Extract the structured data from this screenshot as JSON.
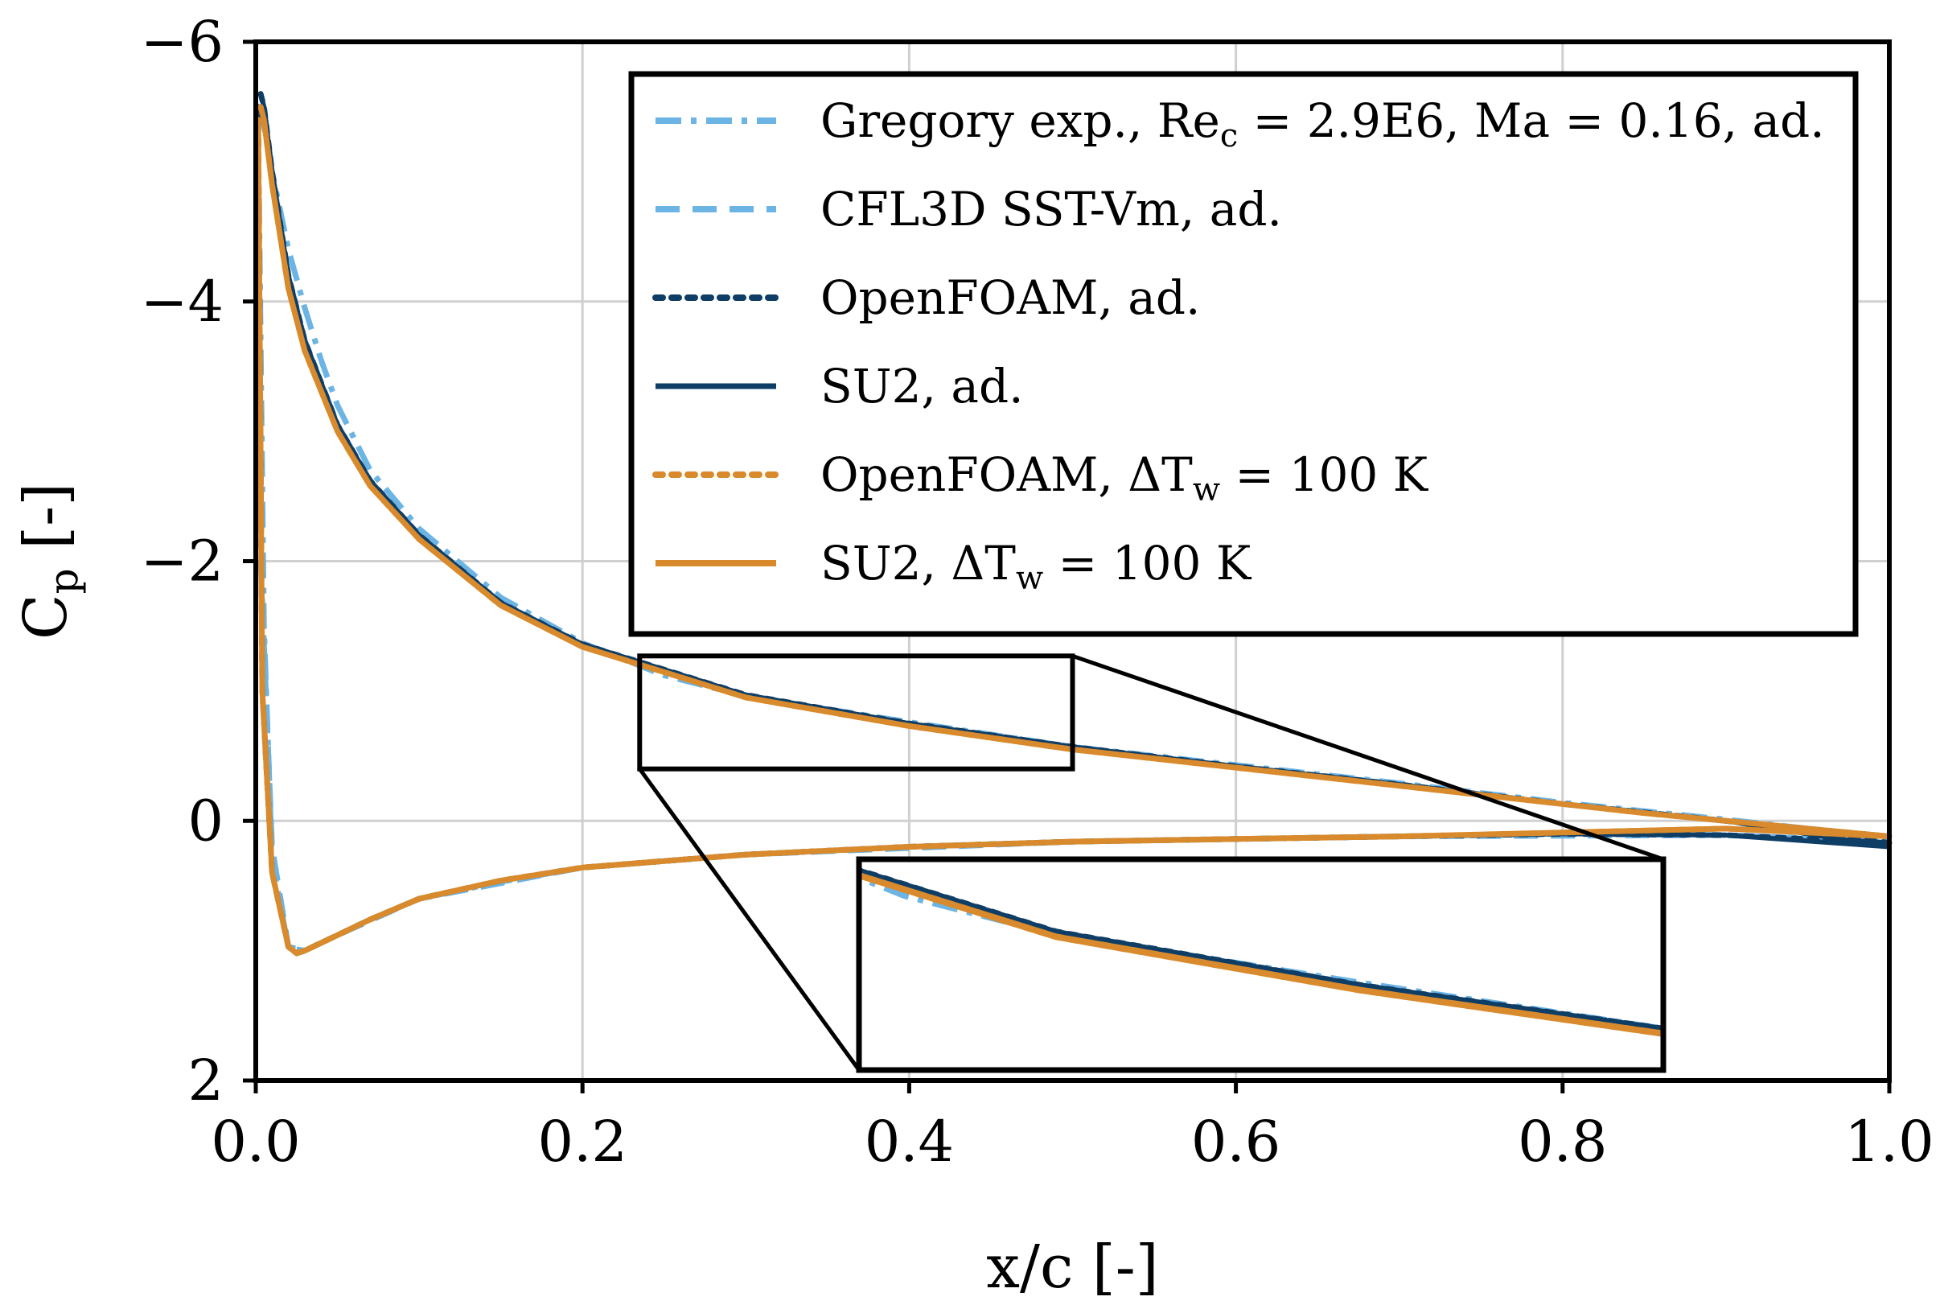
{
  "chart_data": {
    "type": "line",
    "xlabel": "x/c [-]",
    "ylabel_main": "C",
    "ylabel_sub": "p",
    "ylabel_unit": " [-]",
    "xlim": [
      0.0,
      1.0
    ],
    "ylim": [
      2,
      -6
    ],
    "y_inverted": true,
    "grid": true,
    "legend_placement": "top-right",
    "x_ticks": [
      {
        "v": 0.0,
        "label": "0.0"
      },
      {
        "v": 0.2,
        "label": "0.2"
      },
      {
        "v": 0.4,
        "label": "0.4"
      },
      {
        "v": 0.6,
        "label": "0.6"
      },
      {
        "v": 0.8,
        "label": "0.8"
      },
      {
        "v": 1.0,
        "label": "1.0"
      }
    ],
    "y_ticks": [
      {
        "v": -6,
        "label": "−6"
      },
      {
        "v": -4,
        "label": "−4"
      },
      {
        "v": -2,
        "label": "−2"
      },
      {
        "v": 0,
        "label": "0"
      },
      {
        "v": 2,
        "label": "2"
      }
    ],
    "series": [
      {
        "name": "Gregory exp., Re_c = 2.9E6, Ma = 0.16, ad.",
        "legend_parts": [
          [
            "Gregory exp., Re",
            ""
          ],
          [
            "c",
            "sub"
          ],
          [
            " = 2.9E6, Ma = 0.16, ad.",
            ""
          ]
        ],
        "color": "#6cb4e4",
        "style": "dashdot",
        "width": 7,
        "upper": {
          "x": [
            0.003,
            0.01,
            0.02,
            0.03,
            0.04,
            0.05,
            0.07,
            0.1,
            0.15,
            0.2,
            0.25,
            0.3,
            0.4,
            0.5,
            0.6,
            0.7,
            0.8,
            0.9,
            1.0
          ],
          "y": [
            -5.5,
            -5.0,
            -4.4,
            -3.95,
            -3.55,
            -3.2,
            -2.7,
            -2.25,
            -1.72,
            -1.37,
            -1.12,
            -0.96,
            -0.76,
            -0.57,
            -0.43,
            -0.29,
            -0.14,
            -0.01,
            0.13
          ]
        },
        "lower": {
          "x": [
            0.002,
            0.005,
            0.01,
            0.02,
            0.03,
            0.05,
            0.07,
            0.1,
            0.15,
            0.2,
            0.3,
            0.4,
            0.5,
            0.6,
            0.7,
            0.8,
            0.9,
            1.0
          ],
          "y": [
            -4.8,
            -1.5,
            0.3,
            0.98,
            1.0,
            0.88,
            0.76,
            0.6,
            0.47,
            0.36,
            0.26,
            0.2,
            0.16,
            0.14,
            0.12,
            0.1,
            0.11,
            0.16
          ]
        }
      },
      {
        "name": "CFL3D SST-Vm, ad.",
        "legend_parts": [
          [
            "CFL3D SST-Vm, ad.",
            ""
          ]
        ],
        "color": "#6cb4e4",
        "style": "dashed",
        "width": 7,
        "upper": {
          "x": [
            0.005,
            0.01,
            0.02,
            0.03,
            0.05,
            0.07,
            0.1,
            0.15,
            0.2,
            0.3,
            0.4,
            0.5,
            0.6,
            0.7,
            0.8,
            0.9,
            1.0
          ],
          "y": [
            -5.5,
            -5.0,
            -4.2,
            -3.7,
            -3.05,
            -2.62,
            -2.2,
            -1.68,
            -1.36,
            -0.96,
            -0.74,
            -0.56,
            -0.42,
            -0.28,
            -0.13,
            0.0,
            0.12
          ]
        },
        "lower": {
          "x": [
            0.003,
            0.01,
            0.02,
            0.03,
            0.05,
            0.1,
            0.2,
            0.3,
            0.5,
            0.7,
            0.9,
            1.0
          ],
          "y": [
            -2.0,
            0.2,
            0.97,
            1.0,
            0.88,
            0.6,
            0.36,
            0.26,
            0.16,
            0.12,
            0.11,
            0.16
          ]
        }
      },
      {
        "name": "OpenFOAM, ad.",
        "legend_parts": [
          [
            "OpenFOAM, ad.",
            ""
          ]
        ],
        "color": "#0e3d66",
        "style": "dotted",
        "width": 7,
        "upper": {
          "x": [
            0.003,
            0.005,
            0.01,
            0.02,
            0.03,
            0.05,
            0.07,
            0.1,
            0.15,
            0.2,
            0.3,
            0.4,
            0.5,
            0.6,
            0.7,
            0.8,
            0.9,
            1.0
          ],
          "y": [
            -5.6,
            -5.5,
            -5.0,
            -4.2,
            -3.7,
            -3.05,
            -2.62,
            -2.2,
            -1.68,
            -1.36,
            -0.97,
            -0.75,
            -0.57,
            -0.42,
            -0.28,
            -0.13,
            0.0,
            0.17
          ]
        },
        "lower": {
          "x": [
            0.0015,
            0.004,
            0.01,
            0.02,
            0.025,
            0.03,
            0.05,
            0.07,
            0.1,
            0.15,
            0.2,
            0.3,
            0.4,
            0.5,
            0.6,
            0.7,
            0.8,
            0.9,
            1.0
          ],
          "y": [
            -5.5,
            -1.0,
            0.4,
            0.97,
            1.02,
            1.0,
            0.88,
            0.76,
            0.6,
            0.46,
            0.36,
            0.26,
            0.2,
            0.16,
            0.14,
            0.12,
            0.1,
            0.11,
            0.17
          ]
        }
      },
      {
        "name": "SU2, ad.",
        "legend_parts": [
          [
            "SU2, ad.",
            ""
          ]
        ],
        "color": "#0e3d66",
        "style": "solid",
        "width": 6,
        "upper": {
          "x": [
            0.003,
            0.005,
            0.01,
            0.02,
            0.03,
            0.05,
            0.07,
            0.1,
            0.15,
            0.2,
            0.3,
            0.4,
            0.5,
            0.6,
            0.7,
            0.8,
            0.9,
            1.0
          ],
          "y": [
            -5.6,
            -5.5,
            -5.0,
            -4.2,
            -3.7,
            -3.05,
            -2.62,
            -2.2,
            -1.68,
            -1.36,
            -0.97,
            -0.75,
            -0.57,
            -0.42,
            -0.28,
            -0.13,
            0.0,
            0.2
          ]
        },
        "lower": {
          "x": [
            0.0015,
            0.004,
            0.01,
            0.02,
            0.025,
            0.03,
            0.05,
            0.07,
            0.1,
            0.15,
            0.2,
            0.3,
            0.4,
            0.5,
            0.6,
            0.7,
            0.8,
            0.9,
            1.0
          ],
          "y": [
            -5.5,
            -1.0,
            0.4,
            0.97,
            1.02,
            1.0,
            0.88,
            0.76,
            0.6,
            0.46,
            0.36,
            0.26,
            0.2,
            0.16,
            0.14,
            0.12,
            0.1,
            0.11,
            0.2
          ]
        }
      },
      {
        "name": "OpenFOAM, ΔT_w = 100 K",
        "legend_parts": [
          [
            "OpenFOAM, ΔT",
            ""
          ],
          [
            "w",
            "sub"
          ],
          [
            " = 100 K",
            ""
          ]
        ],
        "color": "#d88a2c",
        "style": "dotted",
        "width": 7,
        "upper": {
          "x": [
            0.003,
            0.005,
            0.01,
            0.02,
            0.03,
            0.05,
            0.07,
            0.1,
            0.15,
            0.2,
            0.3,
            0.4,
            0.5,
            0.6,
            0.7,
            0.8,
            0.85,
            0.9,
            1.0
          ],
          "y": [
            -5.5,
            -5.4,
            -4.9,
            -4.1,
            -3.62,
            -3.0,
            -2.58,
            -2.17,
            -1.66,
            -1.34,
            -0.95,
            -0.73,
            -0.55,
            -0.41,
            -0.27,
            -0.13,
            -0.06,
            0.0,
            0.12
          ]
        },
        "lower": {
          "x": [
            0.0015,
            0.004,
            0.01,
            0.02,
            0.025,
            0.03,
            0.05,
            0.07,
            0.1,
            0.15,
            0.2,
            0.3,
            0.4,
            0.5,
            0.6,
            0.7,
            0.8,
            0.9,
            1.0
          ],
          "y": [
            -5.4,
            -1.0,
            0.4,
            0.97,
            1.02,
            1.0,
            0.88,
            0.76,
            0.6,
            0.46,
            0.36,
            0.26,
            0.2,
            0.16,
            0.14,
            0.12,
            0.09,
            0.06,
            0.12
          ]
        }
      },
      {
        "name": "SU2, ΔT_w = 100 K",
        "legend_parts": [
          [
            "SU2, ΔT",
            ""
          ],
          [
            "w",
            "sub"
          ],
          [
            " = 100 K",
            ""
          ]
        ],
        "color": "#d88a2c",
        "style": "solid",
        "width": 7,
        "upper": {
          "x": [
            0.003,
            0.005,
            0.01,
            0.02,
            0.03,
            0.05,
            0.07,
            0.1,
            0.15,
            0.2,
            0.3,
            0.4,
            0.5,
            0.6,
            0.7,
            0.8,
            0.85,
            0.9,
            1.0
          ],
          "y": [
            -5.5,
            -5.4,
            -4.9,
            -4.1,
            -3.62,
            -3.0,
            -2.58,
            -2.17,
            -1.66,
            -1.34,
            -0.95,
            -0.73,
            -0.55,
            -0.41,
            -0.27,
            -0.13,
            -0.06,
            0.0,
            0.12
          ]
        },
        "lower": {
          "x": [
            0.0015,
            0.004,
            0.01,
            0.02,
            0.025,
            0.03,
            0.05,
            0.07,
            0.1,
            0.15,
            0.2,
            0.3,
            0.4,
            0.5,
            0.6,
            0.7,
            0.8,
            0.9,
            1.0
          ],
          "y": [
            -5.4,
            -1.0,
            0.4,
            0.97,
            1.02,
            1.0,
            0.88,
            0.76,
            0.6,
            0.46,
            0.36,
            0.26,
            0.2,
            0.16,
            0.14,
            0.12,
            0.09,
            0.06,
            0.12
          ]
        }
      }
    ],
    "inset": {
      "source_xlim": [
        0.235,
        0.5
      ],
      "source_ylim": [
        -1.27,
        -0.4
      ]
    }
  }
}
